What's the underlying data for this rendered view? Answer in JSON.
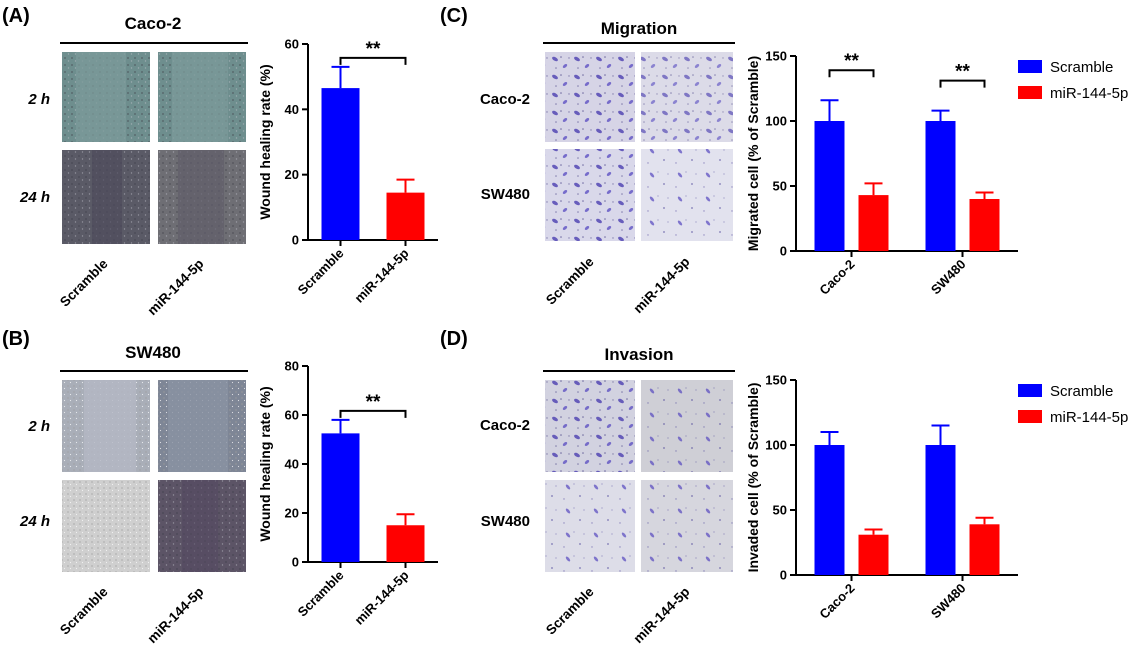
{
  "colors": {
    "scramble": "#0000ff",
    "mir": "#ff0000",
    "axis": "#000000"
  },
  "panels": {
    "A": {
      "label": "(A)",
      "title": "Caco-2",
      "rows": [
        "2 h",
        "24 h"
      ],
      "cols": [
        "Scramble",
        "miR-144-5p"
      ]
    },
    "B": {
      "label": "(B)",
      "title": "SW480",
      "rows": [
        "2 h",
        "24 h"
      ],
      "cols": [
        "Scramble",
        "miR-144-5p"
      ]
    },
    "C": {
      "label": "(C)",
      "title": "Migration",
      "rows": [
        "Caco-2",
        "SW480"
      ],
      "cols": [
        "Scramble",
        "miR-144-5p"
      ]
    },
    "D": {
      "label": "(D)",
      "title": "Invasion",
      "rows": [
        "Caco-2",
        "SW480"
      ],
      "cols": [
        "Scramble",
        "miR-144-5p"
      ]
    }
  },
  "chart_data": [
    {
      "id": "A",
      "type": "bar",
      "categories": [
        "Scramble",
        "miR-144-5p"
      ],
      "values": [
        46.5,
        14.5
      ],
      "errors": [
        6.5,
        4.0
      ],
      "colors": [
        "#0000ff",
        "#ff0000"
      ],
      "ylabel": "Wound healing rate (%)",
      "ylim": [
        0,
        60
      ],
      "yticks": [
        0,
        20,
        40,
        60
      ],
      "significance": [
        {
          "between": [
            0,
            1
          ],
          "label": "**"
        }
      ]
    },
    {
      "id": "B",
      "type": "bar",
      "categories": [
        "Scramble",
        "miR-144-5p"
      ],
      "values": [
        52.5,
        15.0
      ],
      "errors": [
        5.5,
        4.5
      ],
      "colors": [
        "#0000ff",
        "#ff0000"
      ],
      "ylabel": "Wound healing rate (%)",
      "ylim": [
        0,
        80
      ],
      "yticks": [
        0,
        20,
        40,
        60,
        80
      ],
      "significance": [
        {
          "between": [
            0,
            1
          ],
          "label": "**"
        }
      ]
    },
    {
      "id": "C",
      "type": "bar",
      "categories": [
        "Caco-2",
        "SW480"
      ],
      "series": [
        {
          "name": "Scramble",
          "color": "#0000ff",
          "values": [
            100,
            100
          ],
          "errors": [
            16,
            8
          ]
        },
        {
          "name": "miR-144-5p",
          "color": "#ff0000",
          "values": [
            43,
            40
          ],
          "errors": [
            9,
            5
          ]
        }
      ],
      "ylabel": "Migrated cell (% of Scramble)",
      "ylim": [
        0,
        150
      ],
      "yticks": [
        0,
        50,
        100,
        150
      ],
      "significance": [
        {
          "category": 0,
          "label": "**"
        },
        {
          "category": 1,
          "label": "**"
        }
      ],
      "legend": "top-right"
    },
    {
      "id": "D",
      "type": "bar",
      "categories": [
        "Caco-2",
        "SW480"
      ],
      "series": [
        {
          "name": "Scramble",
          "color": "#0000ff",
          "values": [
            100,
            100
          ],
          "errors": [
            10,
            15
          ]
        },
        {
          "name": "miR-144-5p",
          "color": "#ff0000",
          "values": [
            31,
            39
          ],
          "errors": [
            4,
            5
          ]
        }
      ],
      "ylabel": "Invaded cell (% of Scramble)",
      "ylim": [
        0,
        150
      ],
      "yticks": [
        0,
        50,
        100,
        150
      ],
      "significance": [],
      "legend": "top-right"
    }
  ]
}
